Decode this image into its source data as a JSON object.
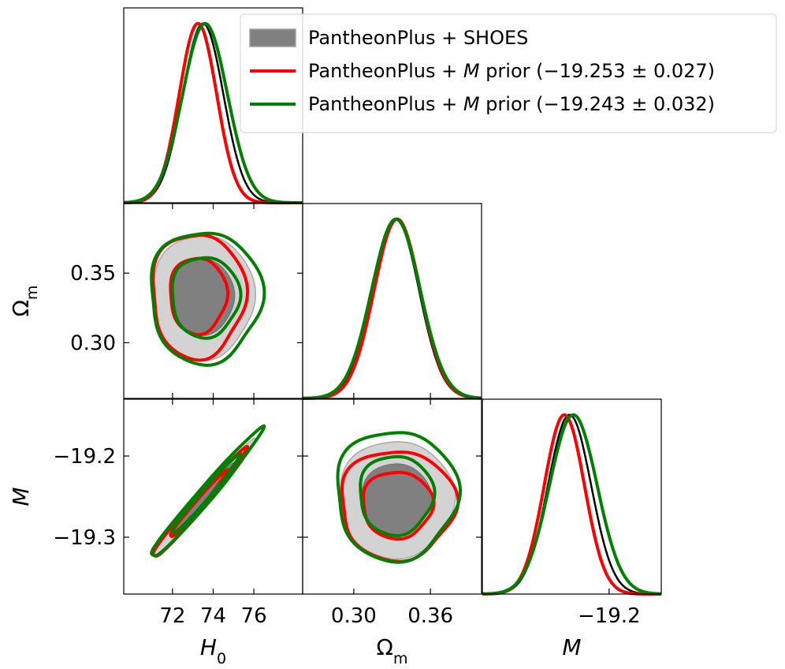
{
  "chart_data": {
    "type": "corner_plot",
    "parameters": [
      {
        "id": "H0",
        "label_main": "H",
        "label_sub": "0",
        "range": [
          69.6,
          78.4
        ],
        "ticks": [
          72,
          74,
          76
        ],
        "tick_labels": [
          "72",
          "74",
          "76"
        ]
      },
      {
        "id": "Om",
        "label_main": "Ω",
        "label_sub": "m",
        "range": [
          0.26,
          0.4
        ],
        "ticks": [
          0.3,
          0.35
        ],
        "tick_labels": [
          "0.30",
          "0.35"
        ],
        "x_ticks": [
          0.3,
          0.36
        ],
        "x_tick_labels": [
          "0.30",
          "0.36"
        ]
      },
      {
        "id": "M",
        "label_main": "M",
        "label_sub": "",
        "range": [
          -19.37,
          -19.13
        ],
        "ticks": [
          -19.3,
          -19.2
        ],
        "tick_labels": [
          "−19.3",
          "−19.2"
        ],
        "x_ticks": [
          -19.2
        ],
        "x_tick_labels": [
          "−19.2"
        ]
      }
    ],
    "legend": {
      "position": "top-right",
      "entries": [
        {
          "key": "shoes",
          "text": "PantheonPlus + SHOES",
          "style": "patch",
          "color": "#808080"
        },
        {
          "key": "m1",
          "text_pre": "PantheonPlus + ",
          "text_var": "M",
          "text_post": " prior (−19.253 ± 0.027)",
          "style": "line",
          "color": "#ff0000"
        },
        {
          "key": "m2",
          "text_pre": "PantheonPlus + ",
          "text_var": "M",
          "text_post": " prior (−19.243 ± 0.032)",
          "style": "line",
          "color": "#007f00"
        }
      ]
    },
    "series": [
      {
        "name": "PantheonPlus + SHOES",
        "color": "#000000",
        "fill_inner": "#808080",
        "fill_outer": "#d3d3d3",
        "mean": {
          "H0": 73.5,
          "Om": 0.333,
          "M": -19.253
        },
        "sd": {
          "H0": 1.0,
          "Om": 0.018,
          "M": 0.029
        }
      },
      {
        "name": "PantheonPlus + M prior (−19.253 ± 0.027)",
        "color": "#ff0000",
        "mean": {
          "H0": 73.25,
          "Om": 0.334,
          "M": -19.26
        },
        "sd": {
          "H0": 0.92,
          "Om": 0.018,
          "M": 0.027
        }
      },
      {
        "name": "PantheonPlus + M prior (−19.243 ± 0.032)",
        "color": "#007f00",
        "mean": {
          "H0": 73.6,
          "Om": 0.333,
          "M": -19.248
        },
        "sd": {
          "H0": 1.1,
          "Om": 0.019,
          "M": 0.032
        }
      }
    ],
    "correlation": {
      "H0_Om": 0.0,
      "H0_M": 0.985,
      "Om_M": 0.0
    },
    "grid": false
  }
}
